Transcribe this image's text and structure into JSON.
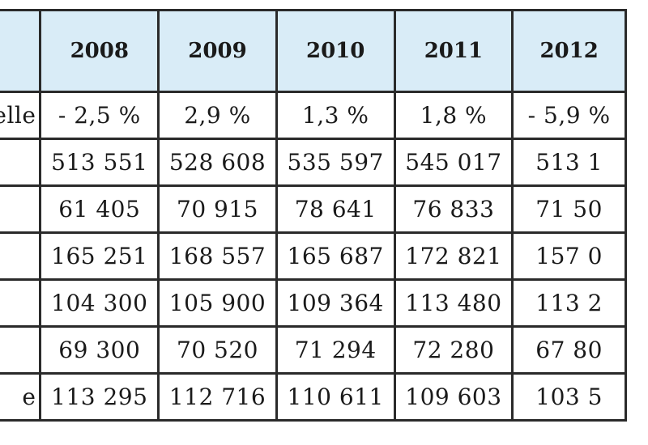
{
  "table": {
    "corner": "",
    "years": [
      "2008",
      "2009",
      "2010",
      "2011",
      "2012"
    ],
    "rows": [
      {
        "label": "elle",
        "values": [
          "- 2,5 %",
          "2,9 %",
          "1,3 %",
          "1,8 %",
          "- 5,9 %"
        ]
      },
      {
        "label": "",
        "values": [
          "513 551",
          "528 608",
          "535 597",
          "545 017",
          "513 1"
        ]
      },
      {
        "label": "",
        "values": [
          "61 405",
          "70 915",
          "78 641",
          "76 833",
          "71 50"
        ]
      },
      {
        "label": "",
        "values": [
          "165 251",
          "168 557",
          "165 687",
          "172 821",
          "157 0"
        ]
      },
      {
        "label": "",
        "values": [
          "104 300",
          "105 900",
          "109 364",
          "113 480",
          "113 2"
        ]
      },
      {
        "label": "",
        "values": [
          "69 300",
          "70 520",
          "71 294",
          "72 280",
          "67 80"
        ]
      },
      {
        "label": "e",
        "values": [
          "113 295",
          "112 716",
          "110 611",
          "109 603",
          "103 5"
        ]
      }
    ]
  }
}
